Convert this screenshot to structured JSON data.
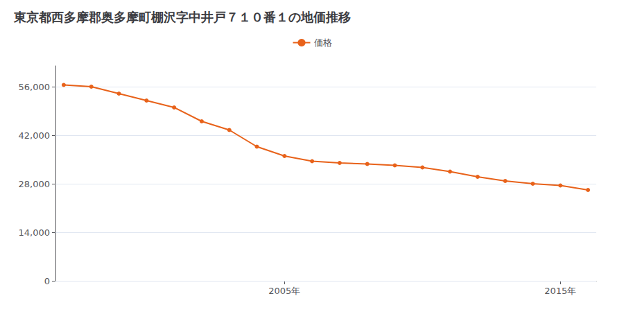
{
  "chart_data": {
    "type": "line",
    "title": "東京都西多摩郡奥多摩町棚沢字中井戸７１０番１の地価推移",
    "x": [
      1997,
      1998,
      1999,
      2000,
      2001,
      2002,
      2003,
      2004,
      2005,
      2006,
      2007,
      2008,
      2009,
      2010,
      2011,
      2012,
      2013,
      2014,
      2015,
      2016
    ],
    "series": [
      {
        "name": "価格",
        "color": "#E8621A",
        "values": [
          56500,
          56000,
          54000,
          52000,
          50000,
          46000,
          43500,
          38700,
          36000,
          34500,
          34000,
          33700,
          33300,
          32700,
          31500,
          30000,
          28800,
          28000,
          27500,
          26200
        ]
      }
    ],
    "xlim": [
      1996.7,
      2016.3
    ],
    "xticks": [
      {
        "value": 2005,
        "label": "2005年"
      },
      {
        "value": 2015,
        "label": "2015年"
      }
    ],
    "ylim": [
      0,
      62000
    ],
    "yticks": [
      0,
      {
        "value": 14000,
        "label": "14,000"
      },
      {
        "value": 28000,
        "label": "28,000"
      },
      {
        "value": 42000,
        "label": "42,000"
      },
      {
        "value": 56000,
        "label": "56,000"
      }
    ],
    "grid": true,
    "marker": "circle",
    "legend": "top"
  }
}
